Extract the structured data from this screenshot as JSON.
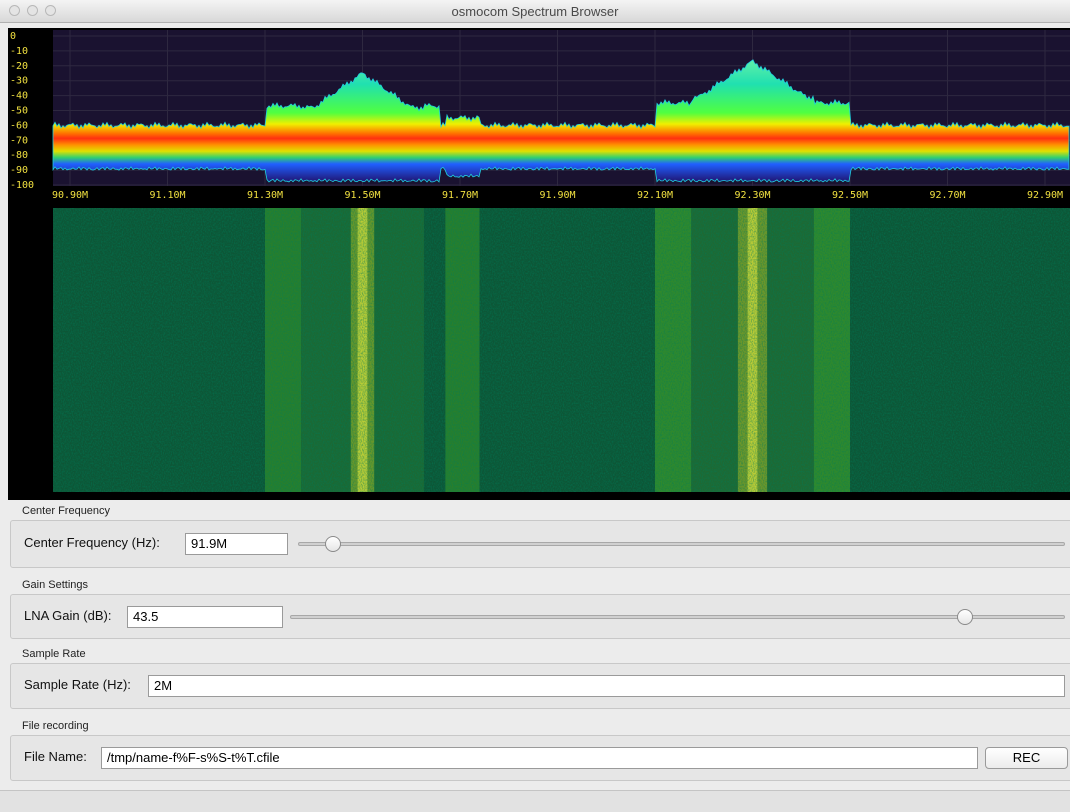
{
  "window": {
    "title": "osmocom Spectrum Browser"
  },
  "spectrum": {
    "y_axis_labels": [
      "0",
      "-10",
      "-20",
      "-30",
      "-40",
      "-50",
      "-60",
      "-70",
      "-80",
      "-90",
      "-100"
    ],
    "x_axis_labels": [
      "90.90M",
      "91.10M",
      "91.30M",
      "91.50M",
      "91.70M",
      "91.90M",
      "92.10M",
      "92.30M",
      "92.50M",
      "92.70M",
      "92.90M"
    ]
  },
  "controls": [
    {
      "group": "Center Frequency",
      "label": "Center Frequency (Hz):",
      "value": "91.9M"
    },
    {
      "group": "Gain Settings",
      "label": "LNA Gain (dB):",
      "value": "43.5"
    },
    {
      "group": "Sample Rate",
      "label": "Sample Rate (Hz):",
      "value": "2M"
    },
    {
      "group": "File recording",
      "label": "File Name:",
      "value": "/tmp/name-f%F-s%S-t%T.cfile",
      "button": "REC"
    }
  ]
}
